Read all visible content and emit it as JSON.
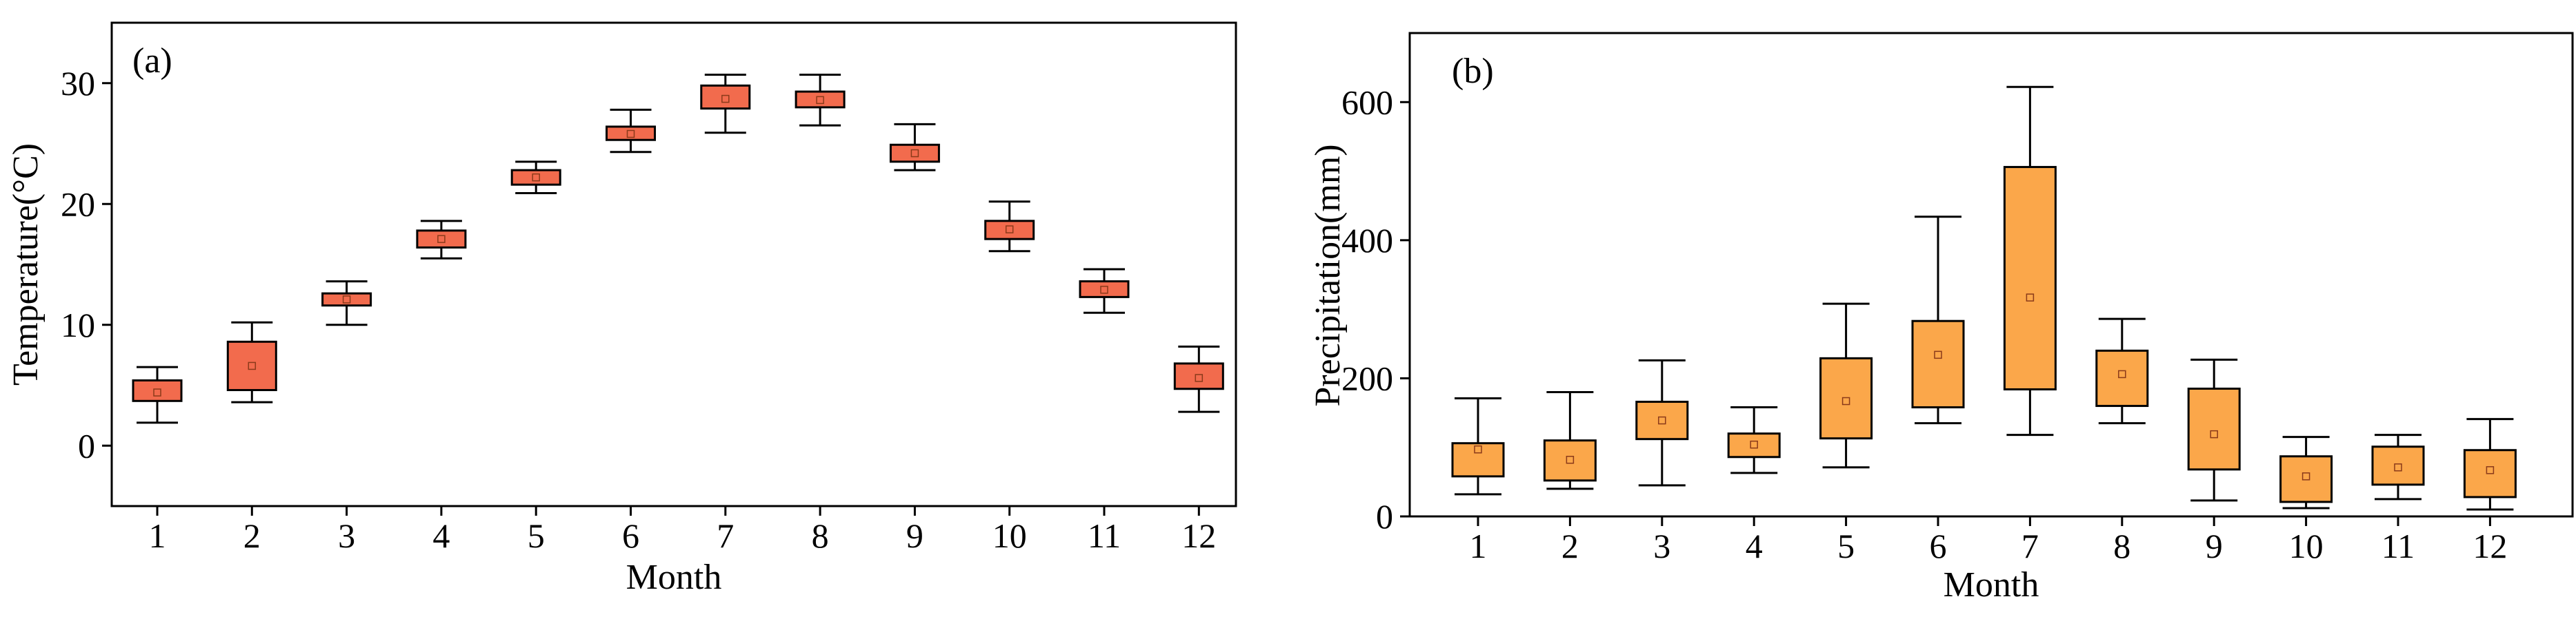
{
  "chart_data": [
    {
      "type": "box",
      "panel_label": "(a)",
      "xlabel": "Month",
      "ylabel": "Temperature(°C)",
      "ylim": [
        -5,
        35
      ],
      "yticks": [
        0,
        10,
        20,
        30
      ],
      "categories": [
        "1",
        "2",
        "3",
        "4",
        "5",
        "6",
        "7",
        "8",
        "9",
        "10",
        "11",
        "12"
      ],
      "box_color": "#f26b4d",
      "series": [
        {
          "category": "1",
          "whisker_low": 1.9,
          "q1": 3.7,
          "q3": 5.4,
          "whisker_high": 6.5,
          "mean": 4.4
        },
        {
          "category": "2",
          "whisker_low": 3.6,
          "q1": 4.6,
          "q3": 8.6,
          "whisker_high": 10.2,
          "mean": 6.6
        },
        {
          "category": "3",
          "whisker_low": 10.0,
          "q1": 11.6,
          "q3": 12.6,
          "whisker_high": 13.6,
          "mean": 12.1
        },
        {
          "category": "4",
          "whisker_low": 15.5,
          "q1": 16.4,
          "q3": 17.8,
          "whisker_high": 18.6,
          "mean": 17.1
        },
        {
          "category": "5",
          "whisker_low": 20.9,
          "q1": 21.6,
          "q3": 22.8,
          "whisker_high": 23.5,
          "mean": 22.2
        },
        {
          "category": "6",
          "whisker_low": 24.3,
          "q1": 25.3,
          "q3": 26.4,
          "whisker_high": 27.8,
          "mean": 25.8
        },
        {
          "category": "7",
          "whisker_low": 25.9,
          "q1": 27.9,
          "q3": 29.8,
          "whisker_high": 30.7,
          "mean": 28.7
        },
        {
          "category": "8",
          "whisker_low": 26.5,
          "q1": 28.0,
          "q3": 29.3,
          "whisker_high": 30.7,
          "mean": 28.6
        },
        {
          "category": "9",
          "whisker_low": 22.8,
          "q1": 23.5,
          "q3": 24.9,
          "whisker_high": 26.6,
          "mean": 24.2
        },
        {
          "category": "10",
          "whisker_low": 16.1,
          "q1": 17.1,
          "q3": 18.6,
          "whisker_high": 20.2,
          "mean": 17.9
        },
        {
          "category": "11",
          "whisker_low": 11.0,
          "q1": 12.3,
          "q3": 13.6,
          "whisker_high": 14.6,
          "mean": 12.9
        },
        {
          "category": "12",
          "whisker_low": 2.8,
          "q1": 4.7,
          "q3": 6.8,
          "whisker_high": 8.2,
          "mean": 5.6
        }
      ]
    },
    {
      "type": "box",
      "panel_label": "(b)",
      "xlabel": "Month",
      "ylabel": "Precipitation(mm)",
      "ylim": [
        0,
        700
      ],
      "yticks": [
        0,
        200,
        400,
        600
      ],
      "categories": [
        "1",
        "2",
        "3",
        "4",
        "5",
        "6",
        "7",
        "8",
        "9",
        "10",
        "11",
        "12"
      ],
      "box_color": "#fba74a",
      "series": [
        {
          "category": "1",
          "whisker_low": 32,
          "q1": 58,
          "q3": 106,
          "whisker_high": 171,
          "mean": 97
        },
        {
          "category": "2",
          "whisker_low": 40,
          "q1": 52,
          "q3": 110,
          "whisker_high": 180,
          "mean": 82
        },
        {
          "category": "3",
          "whisker_low": 45,
          "q1": 112,
          "q3": 166,
          "whisker_high": 226,
          "mean": 139
        },
        {
          "category": "4",
          "whisker_low": 63,
          "q1": 86,
          "q3": 120,
          "whisker_high": 158,
          "mean": 104
        },
        {
          "category": "5",
          "whisker_low": 71,
          "q1": 113,
          "q3": 229,
          "whisker_high": 308,
          "mean": 167
        },
        {
          "category": "6",
          "whisker_low": 135,
          "q1": 158,
          "q3": 283,
          "whisker_high": 434,
          "mean": 234
        },
        {
          "category": "7",
          "whisker_low": 118,
          "q1": 184,
          "q3": 506,
          "whisker_high": 622,
          "mean": 317
        },
        {
          "category": "8",
          "whisker_low": 135,
          "q1": 160,
          "q3": 240,
          "whisker_high": 286,
          "mean": 206
        },
        {
          "category": "9",
          "whisker_low": 23,
          "q1": 68,
          "q3": 185,
          "whisker_high": 227,
          "mean": 119
        },
        {
          "category": "10",
          "whisker_low": 12,
          "q1": 21,
          "q3": 87,
          "whisker_high": 115,
          "mean": 58
        },
        {
          "category": "11",
          "whisker_low": 25,
          "q1": 46,
          "q3": 101,
          "whisker_high": 118,
          "mean": 71
        },
        {
          "category": "12",
          "whisker_low": 10,
          "q1": 28,
          "q3": 96,
          "whisker_high": 141,
          "mean": 67
        }
      ]
    }
  ]
}
